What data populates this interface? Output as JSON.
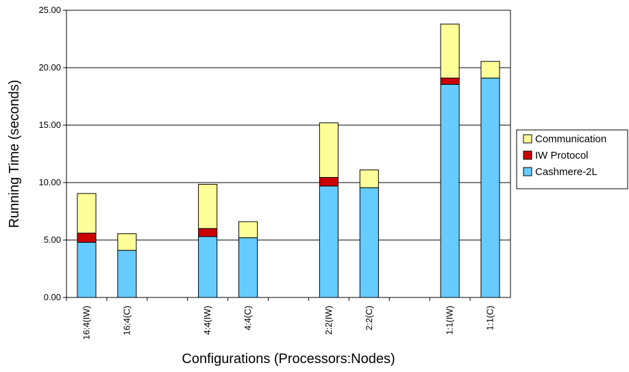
{
  "chart_data": {
    "type": "bar",
    "stacked": true,
    "categories": [
      "16:4(IW)",
      "16:4(C)",
      "",
      "4:4(IW)",
      "4:4(C)",
      "",
      "2:2(IW)",
      "2:2(C)",
      "",
      "1:1(IW)",
      "1:1(C)"
    ],
    "series": [
      {
        "name": "Cashmere-2L",
        "values": [
          4.8,
          4.1,
          null,
          5.3,
          5.2,
          null,
          9.7,
          9.55,
          null,
          18.55,
          19.1
        ]
      },
      {
        "name": "IW Protocol",
        "values": [
          0.8,
          0,
          null,
          0.7,
          0,
          null,
          0.75,
          0,
          null,
          0.55,
          0
        ]
      },
      {
        "name": "Communication",
        "values": [
          3.45,
          1.45,
          null,
          3.85,
          1.4,
          null,
          4.75,
          1.55,
          null,
          4.7,
          1.45
        ]
      }
    ],
    "colors": {
      "Cashmere-2L": "#66ccff",
      "IW Protocol": "#cc0000",
      "Communication": "#ffff99"
    },
    "xlabel": "Configurations (Processors:Nodes)",
    "ylabel": "Running Time (seconds)",
    "ylim": [
      0,
      25
    ],
    "yticks": [
      "0.00",
      "5.00",
      "10.00",
      "15.00",
      "20.00",
      "25.00"
    ],
    "grid": true,
    "legend_position": "right",
    "legend_order": [
      "Communication",
      "IW Protocol",
      "Cashmere-2L"
    ]
  }
}
